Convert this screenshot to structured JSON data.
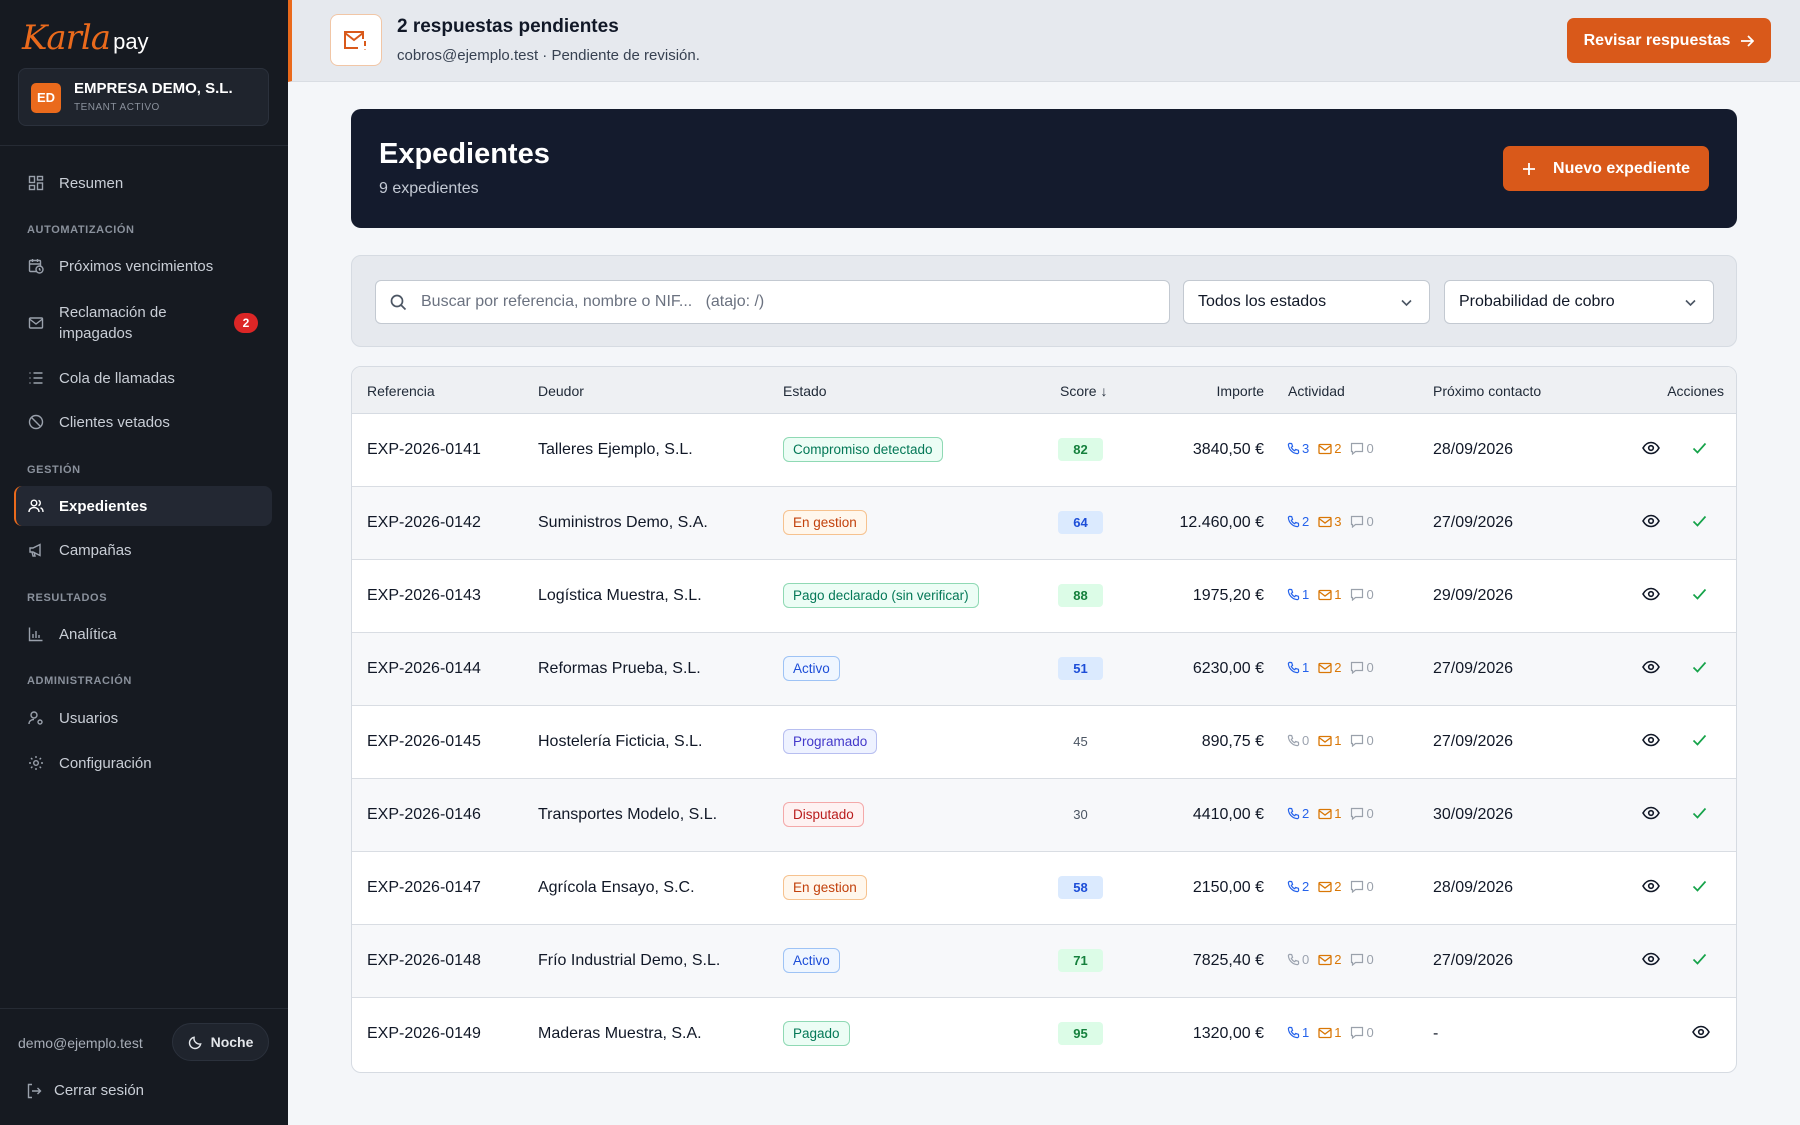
{
  "sidebar": {
    "logo": {
      "script": "Karla",
      "suffix": "pay"
    },
    "tenant": {
      "initials": "ED",
      "name": "EMPRESA DEMO, S.L.",
      "subtitle": "TENANT ACTIVO"
    },
    "items": {
      "resumen": "Resumen",
      "section_auto": "AUTOMATIZACIÓN",
      "vencimientos": "Próximos vencimientos",
      "reclamacion": "Reclamación de impagados",
      "reclamacion_badge": "2",
      "cola": "Cola de llamadas",
      "vetados": "Clientes vetados",
      "section_gestion": "GESTIÓN",
      "expedientes": "Expedientes",
      "campanas": "Campañas",
      "section_resultados": "RESULTADOS",
      "analitica": "Analítica",
      "section_admin": "ADMINISTRACIÓN",
      "usuarios": "Usuarios",
      "configuracion": "Configuración"
    },
    "user_email": "demo@ejemplo.test",
    "theme_label": "Noche",
    "logout_label": "Cerrar sesión"
  },
  "banner": {
    "icon": "mail-alert-icon",
    "title": "2 respuestas pendientes",
    "subtitle": "cobros@ejemplo.test · Pendiente de revisión.",
    "button": "Revisar respuestas"
  },
  "header": {
    "title": "Expedientes",
    "subtitle": "9 expedientes",
    "new_button": "Nuevo expediente"
  },
  "filters": {
    "search_placeholder": "Buscar por referencia, nombre o NIF...   (atajo: /)",
    "estado": "Todos los estados",
    "probabilidad": "Probabilidad de cobro"
  },
  "table": {
    "columns": {
      "referencia": "Referencia",
      "deudor": "Deudor",
      "estado": "Estado",
      "score": "Score ↓",
      "importe": "Importe",
      "actividad": "Actividad",
      "proximo": "Próximo contacto",
      "acciones": "Acciones"
    },
    "rows": [
      {
        "ref": "EXP-2026-0141",
        "deudor": "Talleres Ejemplo, S.L.",
        "estado": "Compromiso detectado",
        "estado_color": "green",
        "score": "82",
        "score_color": "green",
        "importe": "3840,50 €",
        "calls": "3",
        "mails": "2",
        "msgs": "0",
        "proximo": "28/09/2026"
      },
      {
        "ref": "EXP-2026-0142",
        "deudor": "Suministros Demo, S.A.",
        "estado": "En gestion",
        "estado_color": "orange",
        "score": "64",
        "score_color": "blue",
        "importe": "12.460,00 €",
        "calls": "2",
        "mails": "3",
        "msgs": "0",
        "proximo": "27/09/2026"
      },
      {
        "ref": "EXP-2026-0143",
        "deudor": "Logística Muestra, S.L.",
        "estado": "Pago declarado (sin verificar)",
        "estado_color": "green",
        "score": "88",
        "score_color": "green",
        "importe": "1975,20 €",
        "calls": "1",
        "mails": "1",
        "msgs": "0",
        "proximo": "29/09/2026"
      },
      {
        "ref": "EXP-2026-0144",
        "deudor": "Reformas Prueba, S.L.",
        "estado": "Activo",
        "estado_color": "blue",
        "score": "51",
        "score_color": "blue",
        "importe": "6230,00 €",
        "calls": "1",
        "mails": "2",
        "msgs": "0",
        "proximo": "27/09/2026"
      },
      {
        "ref": "EXP-2026-0145",
        "deudor": "Hostelería Ficticia, S.L.",
        "estado": "Programado",
        "estado_color": "indigo",
        "score": "45",
        "score_color": "gray",
        "importe": "890,75 €",
        "calls": "0",
        "mails": "1",
        "msgs": "0",
        "proximo": "27/09/2026"
      },
      {
        "ref": "EXP-2026-0146",
        "deudor": "Transportes Modelo, S.L.",
        "estado": "Disputado",
        "estado_color": "red",
        "score": "30",
        "score_color": "gray",
        "importe": "4410,00 €",
        "calls": "2",
        "mails": "1",
        "msgs": "0",
        "proximo": "30/09/2026"
      },
      {
        "ref": "EXP-2026-0147",
        "deudor": "Agrícola Ensayo, S.C.",
        "estado": "En gestion",
        "estado_color": "orange",
        "score": "58",
        "score_color": "blue",
        "importe": "2150,00 €",
        "calls": "2",
        "mails": "2",
        "msgs": "0",
        "proximo": "28/09/2026"
      },
      {
        "ref": "EXP-2026-0148",
        "deudor": "Frío Industrial Demo, S.L.",
        "estado": "Activo",
        "estado_color": "blue",
        "score": "71",
        "score_color": "green",
        "importe": "7825,40 €",
        "calls": "0",
        "mails": "2",
        "msgs": "0",
        "proximo": "27/09/2026"
      },
      {
        "ref": "EXP-2026-0149",
        "deudor": "Maderas Muestra, S.A.",
        "estado": "Pagado",
        "estado_color": "green",
        "score": "95",
        "score_color": "green",
        "importe": "1320,00 €",
        "calls": "1",
        "mails": "1",
        "msgs": "0",
        "proximo": "-"
      }
    ]
  },
  "colors": {
    "accent": "#d9591a",
    "sidebar_bg": "#161a21",
    "header_bg": "#141b2d"
  }
}
